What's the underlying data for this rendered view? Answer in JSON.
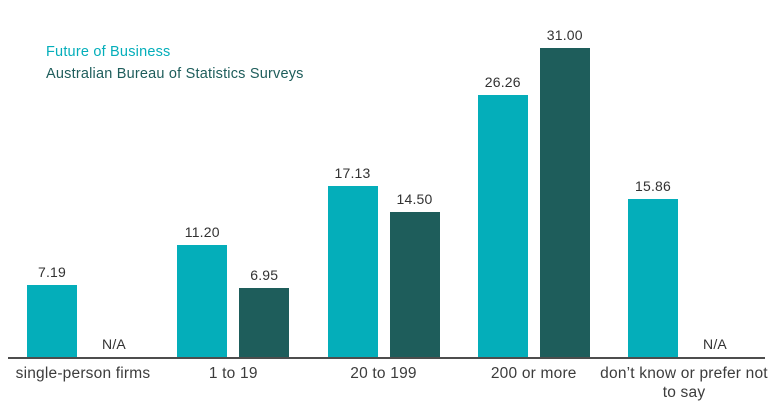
{
  "legend": {
    "series1": "Future of Business",
    "series2": "Australian Bureau of Statistics Surveys"
  },
  "na_label": "N/A",
  "colors": {
    "series1": "#04aeba",
    "series2": "#1e5d5b",
    "axis": "#4d4d4d",
    "value_label": "#323232",
    "category_label": "#3c3c3c"
  },
  "chart_data": {
    "type": "bar",
    "title": "",
    "xlabel": "",
    "ylabel": "",
    "grid": false,
    "legend_position": "top-left",
    "ylim": [
      0,
      31
    ],
    "categories": [
      "single-person firms",
      "1 to 19",
      "20 to 199",
      "200 or more",
      "don’t know or prefer not to say"
    ],
    "series": [
      {
        "name": "Future of Business",
        "color": "#04aeba",
        "values": [
          7.19,
          11.2,
          17.13,
          26.26,
          15.86
        ],
        "labels": [
          "7.19",
          "11.20",
          "17.13",
          "26.26",
          "15.86"
        ]
      },
      {
        "name": "Australian Bureau of Statistics Surveys",
        "color": "#1e5d5b",
        "values": [
          null,
          6.95,
          14.5,
          31.0,
          null
        ],
        "labels": [
          "N/A",
          "6.95",
          "14.50",
          "31.00",
          "N/A"
        ]
      }
    ]
  }
}
